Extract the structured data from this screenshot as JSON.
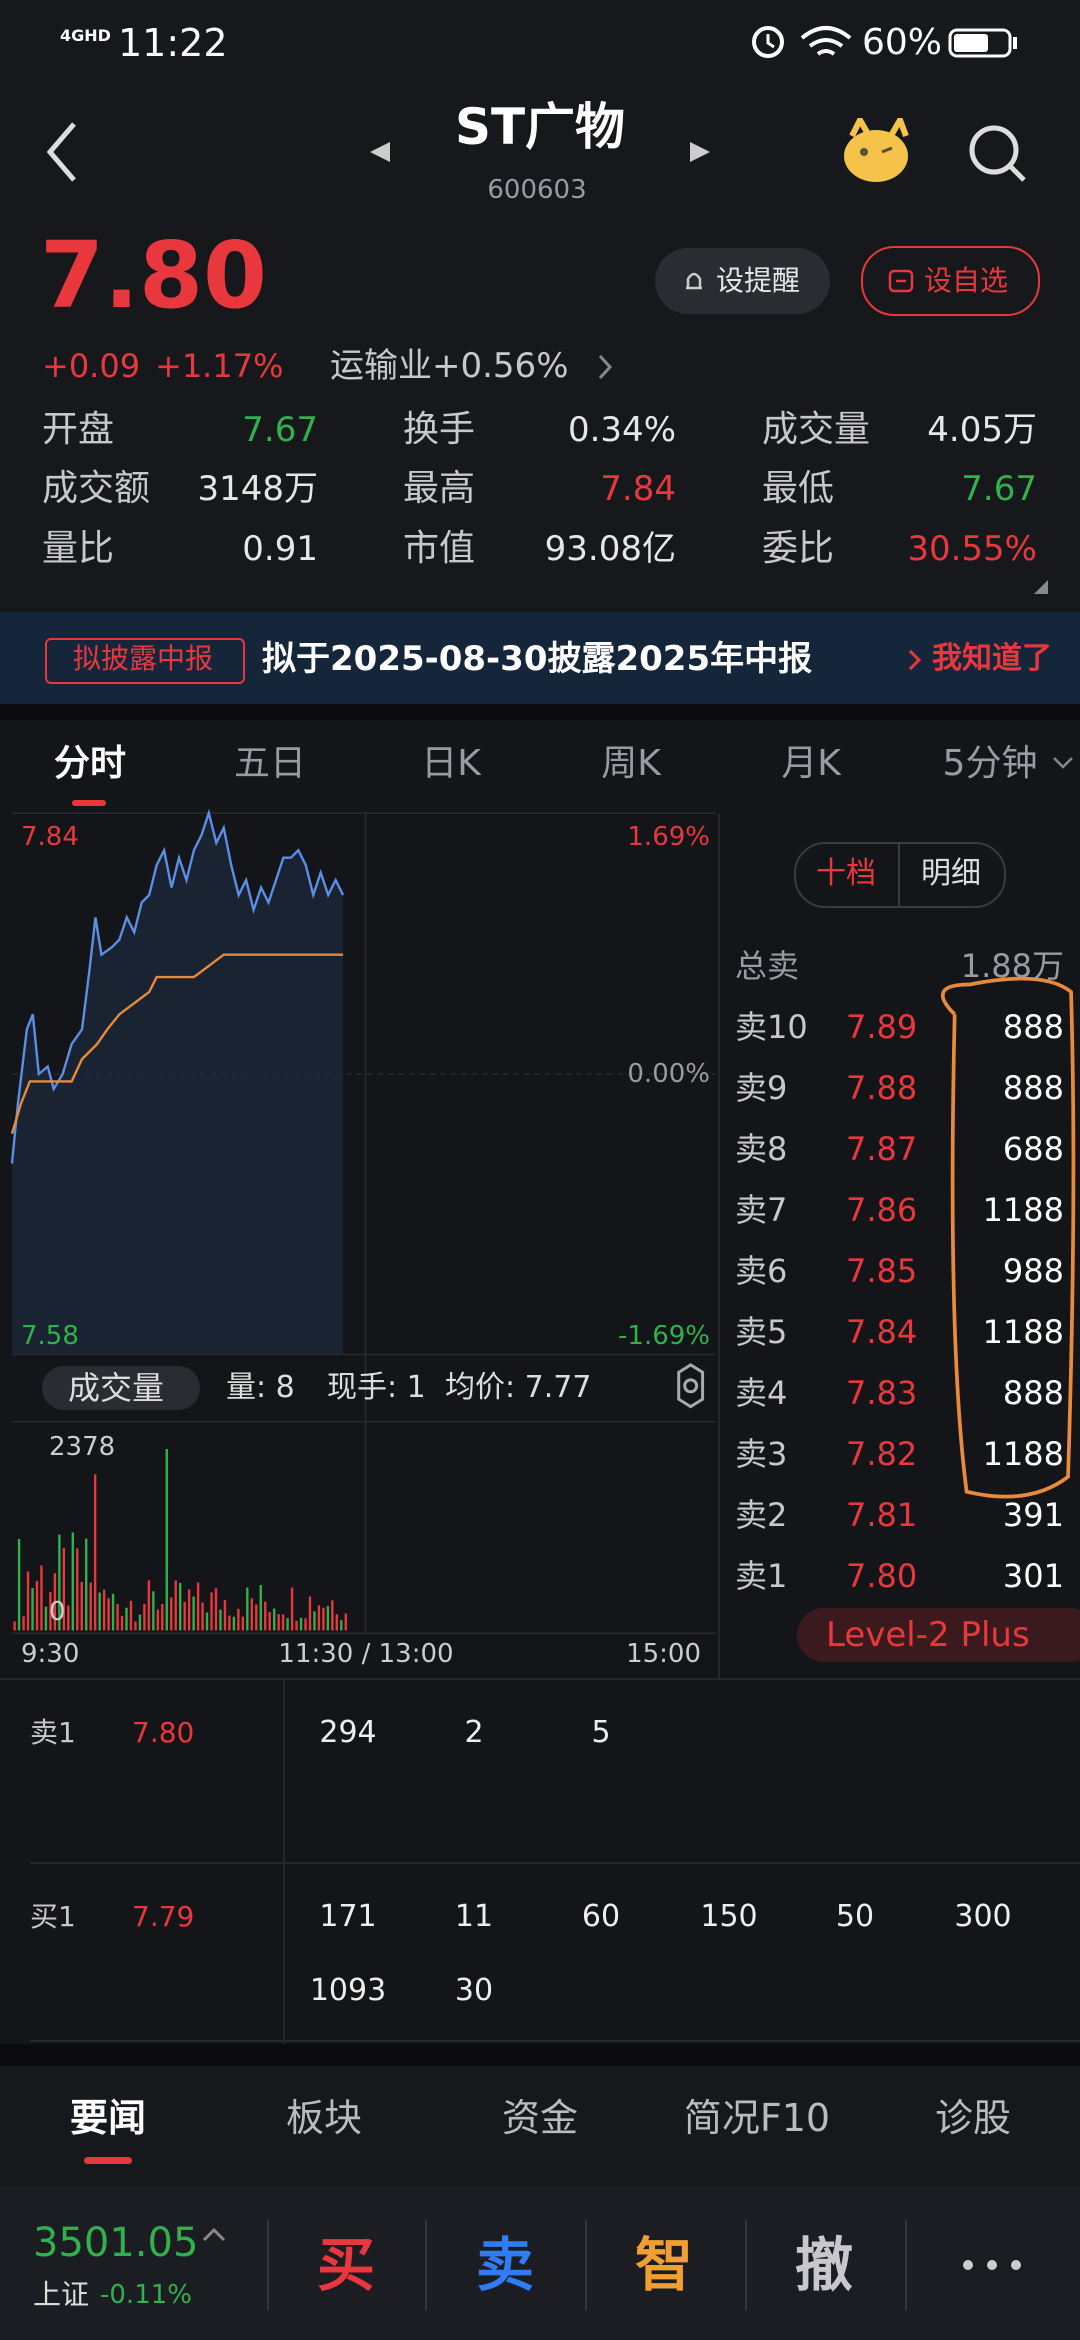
{
  "status": {
    "network": "4GHD",
    "time": "11:22",
    "battery": "60%"
  },
  "header": {
    "title": "ST广物",
    "code": "600603"
  },
  "quote": {
    "price": "7.80",
    "change": "+0.09",
    "percent": "+1.17%",
    "industry": "运输业+0.56%",
    "buttons": [
      "设提醒",
      "设自选"
    ]
  },
  "stats": [
    {
      "label": "开盘",
      "value": "7.67",
      "color": "#2fb24c"
    },
    {
      "label": "换手",
      "value": "0.34%",
      "color": "#e6e6e6"
    },
    {
      "label": "成交量",
      "value": "4.05万",
      "color": "#e6e6e6"
    },
    {
      "label": "成交额",
      "value": "3148万",
      "color": "#e6e6e6"
    },
    {
      "label": "最高",
      "value": "7.84",
      "color": "#e8383d"
    },
    {
      "label": "最低",
      "value": "7.67",
      "color": "#2fb24c"
    },
    {
      "label": "量比",
      "value": "0.91",
      "color": "#e6e6e6"
    },
    {
      "label": "市值",
      "value": "93.08亿",
      "color": "#e6e6e6"
    },
    {
      "label": "委比",
      "value": "30.55%",
      "color": "#e8383d"
    }
  ],
  "notice": {
    "tag": "拟披露中报",
    "text": "拟于2025-08-30披露2025年中报",
    "action": "我知道了"
  },
  "tabs": [
    "分时",
    "五日",
    "日K",
    "周K",
    "月K",
    "5分钟"
  ],
  "chart": {
    "price_high": "7.84",
    "pct_high": "1.69%",
    "pct_mid": "0.00%",
    "price_low": "7.58",
    "pct_low": "-1.69%",
    "vol_max": "2378",
    "vol_min": "0",
    "times": [
      "9:30",
      "11:30 / 13:00",
      "15:00"
    ]
  },
  "volume_bar": {
    "selector": "成交量",
    "items": [
      "量: 8",
      "现手: 1",
      "均价: 7.77"
    ]
  },
  "orderbook": {
    "toggle": [
      "十档",
      "明细"
    ],
    "total_label": "总卖",
    "total": "1.88万",
    "levels": [
      {
        "name": "卖10",
        "price": "7.89",
        "volume": "888"
      },
      {
        "name": "卖9",
        "price": "7.88",
        "volume": "888"
      },
      {
        "name": "卖8",
        "price": "7.87",
        "volume": "688"
      },
      {
        "name": "卖7",
        "price": "7.86",
        "volume": "1188"
      },
      {
        "name": "卖6",
        "price": "7.85",
        "volume": "988"
      },
      {
        "name": "卖5",
        "price": "7.84",
        "volume": "1188"
      },
      {
        "name": "卖4",
        "price": "7.83",
        "volume": "888"
      },
      {
        "name": "卖3",
        "price": "7.82",
        "volume": "1188"
      },
      {
        "name": "卖2",
        "price": "7.81",
        "volume": "391"
      },
      {
        "name": "卖1",
        "price": "7.80",
        "volume": "301"
      }
    ],
    "level2": "Level-2 Plus"
  },
  "queue": {
    "sell": {
      "label": "卖1",
      "price": "7.80",
      "orders": [
        "294",
        "2",
        "5"
      ]
    },
    "buy": {
      "label": "买1",
      "price": "7.79",
      "orders": [
        "171",
        "11",
        "60",
        "150",
        "50",
        "300",
        "1093",
        "30"
      ]
    }
  },
  "bottom_tabs": [
    "要闻",
    "板块",
    "资金",
    "简况F10",
    "诊股"
  ],
  "footer": {
    "index": "3501.05",
    "name": "上证",
    "change": "-0.11%",
    "actions": [
      "买",
      "卖",
      "智",
      "撤"
    ]
  }
}
